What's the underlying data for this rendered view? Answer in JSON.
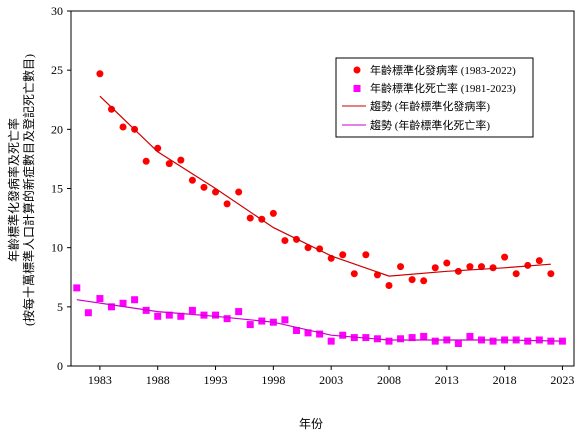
{
  "chart_data": {
    "type": "scatter",
    "title": "",
    "xlabel": "年份",
    "ylabel_lines": [
      "年齡標準化發病率及死亡率",
      "(按每十萬標準人口計算的新症數目及登記死亡數目)"
    ],
    "xlim": [
      1980.5,
      2024
    ],
    "ylim": [
      0,
      30
    ],
    "x_ticks": [
      1983,
      1988,
      1993,
      1998,
      2003,
      2008,
      2013,
      2018,
      2023
    ],
    "y_ticks": [
      0,
      5,
      10,
      15,
      20,
      25,
      30
    ],
    "grid": false,
    "legend_position": "top-right",
    "series": [
      {
        "name": "年齡標準化發病率 (1983-2022)",
        "kind": "scatter",
        "marker": "circle",
        "color": "#ff0000",
        "x": [
          1983,
          1984,
          1985,
          1986,
          1987,
          1988,
          1989,
          1990,
          1991,
          1992,
          1993,
          1994,
          1995,
          1996,
          1997,
          1998,
          1999,
          2000,
          2001,
          2002,
          2003,
          2004,
          2005,
          2006,
          2007,
          2008,
          2009,
          2010,
          2011,
          2012,
          2013,
          2014,
          2015,
          2016,
          2017,
          2018,
          2019,
          2020,
          2021,
          2022
        ],
        "y": [
          24.7,
          21.7,
          20.2,
          20.0,
          17.3,
          18.4,
          17.1,
          17.4,
          15.7,
          15.1,
          14.7,
          13.7,
          14.7,
          12.5,
          12.4,
          12.9,
          10.6,
          10.7,
          10.0,
          9.9,
          9.1,
          9.4,
          7.8,
          9.4,
          7.7,
          6.8,
          8.4,
          7.3,
          7.2,
          8.3,
          8.7,
          8.0,
          8.4,
          8.4,
          8.3,
          9.2,
          7.8,
          8.5,
          8.9,
          7.8
        ]
      },
      {
        "name": "年齡標準化死亡率 (1981-2023)",
        "kind": "scatter",
        "marker": "square",
        "color": "#ff00ff",
        "x": [
          1981,
          1982,
          1983,
          1984,
          1985,
          1986,
          1987,
          1988,
          1989,
          1990,
          1991,
          1992,
          1993,
          1994,
          1995,
          1996,
          1997,
          1998,
          1999,
          2000,
          2001,
          2002,
          2003,
          2004,
          2005,
          2006,
          2007,
          2008,
          2009,
          2010,
          2011,
          2012,
          2013,
          2014,
          2015,
          2016,
          2017,
          2018,
          2019,
          2020,
          2021,
          2022,
          2023
        ],
        "y": [
          6.6,
          4.5,
          5.7,
          5.0,
          5.3,
          5.6,
          4.7,
          4.2,
          4.3,
          4.2,
          4.7,
          4.3,
          4.3,
          4.0,
          4.6,
          3.5,
          3.8,
          3.7,
          3.9,
          3.0,
          2.8,
          2.7,
          2.1,
          2.6,
          2.4,
          2.4,
          2.3,
          2.1,
          2.3,
          2.4,
          2.5,
          2.1,
          2.2,
          1.9,
          2.5,
          2.2,
          2.1,
          2.2,
          2.2,
          2.1,
          2.2,
          2.1,
          2.1
        ]
      },
      {
        "name": "趨勢 (年齡標準化發病率)",
        "kind": "line",
        "color": "#cc0000",
        "x": [
          1983,
          1988,
          1993,
          1998,
          2003,
          2008,
          2013,
          2018,
          2022
        ],
        "y": [
          22.8,
          18.1,
          15.0,
          11.7,
          9.3,
          7.6,
          8.0,
          8.3,
          8.6
        ]
      },
      {
        "name": "趨勢 (年齡標準化死亡率)",
        "kind": "line",
        "color": "#cc00cc",
        "x": [
          1981,
          1988,
          1993,
          1998,
          2003,
          2008,
          2013,
          2018,
          2023
        ],
        "y": [
          5.6,
          4.6,
          4.2,
          3.7,
          2.6,
          2.2,
          2.2,
          2.2,
          2.1
        ]
      }
    ]
  }
}
